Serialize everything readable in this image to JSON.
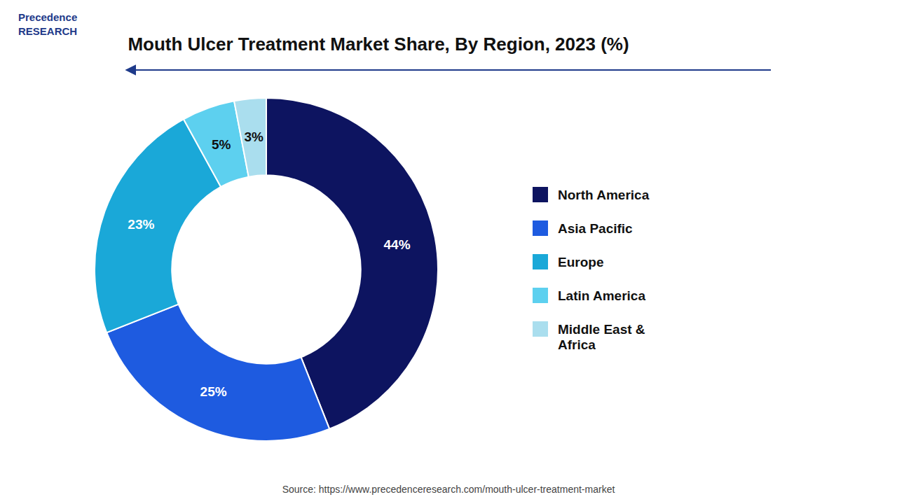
{
  "chart_data": {
    "type": "pie",
    "title": "Mouth Ulcer Treatment Market Share, By Region, 2023 (%)",
    "categories": [
      "North America",
      "Asia Pacific",
      "Europe",
      "Latin America",
      "Middle East &\nAfrica"
    ],
    "values": [
      44,
      25,
      23,
      5,
      3
    ],
    "value_labels": [
      "44%",
      "25%",
      "23%",
      "5%",
      "3%"
    ],
    "colors": [
      "#0d1460",
      "#1e5be0",
      "#1aa8d8",
      "#5dd0ef",
      "#aadeee"
    ],
    "data_labels": true,
    "legend": "right",
    "annotations": [
      "Precedence\nRESEARCH",
      "Source: https://www.precedenceresearch.com/mouth-ulcer-treatment-market"
    ]
  }
}
